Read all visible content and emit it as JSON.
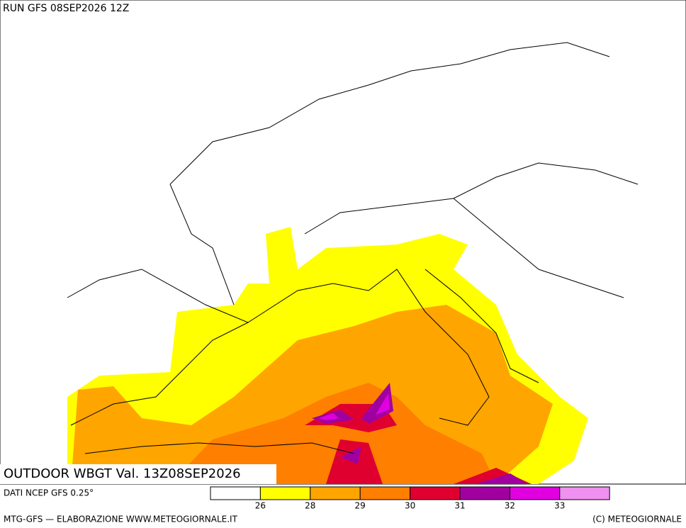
{
  "header": {
    "run": "RUN GFS 08SEP2026 12Z"
  },
  "map": {
    "title": "OUTDOOR WBGT Val. 13Z08SEP2026"
  },
  "legend": {
    "source": "DATI NCEP GFS 0.25°",
    "colors": [
      "#ffffff",
      "#ffff00",
      "#ffa500",
      "#ff7f00",
      "#e00030",
      "#a000a0",
      "#e000e0",
      "#f090f0"
    ],
    "ticks": [
      26,
      28,
      29,
      30,
      31,
      32,
      33
    ]
  },
  "footer": {
    "left": "MTG-GFS — ELABORAZIONE WWW.METEOGIORNALE.IT",
    "right": "(C) METEOGIORNALE"
  }
}
